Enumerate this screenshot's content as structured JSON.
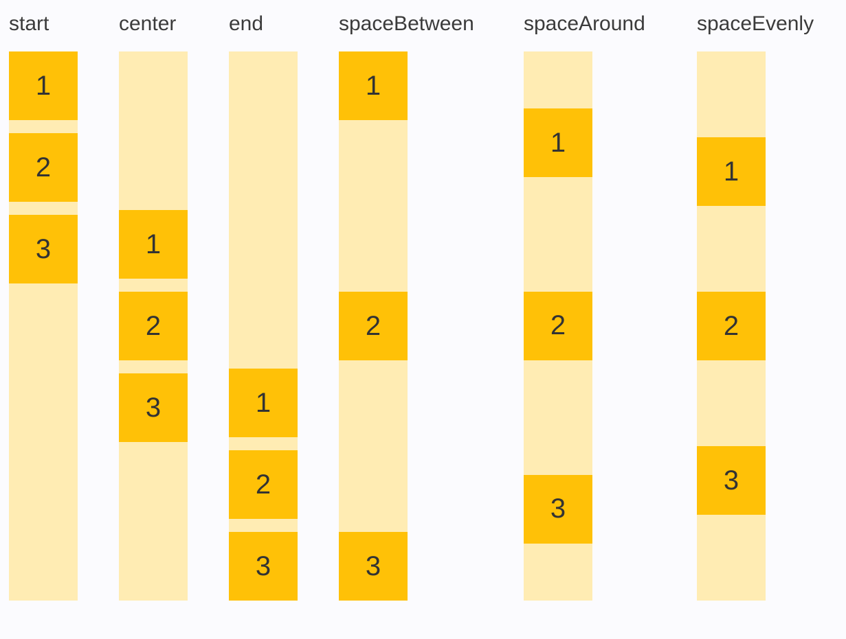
{
  "page": {
    "background_color": "#FBFBFE",
    "description": "main-axis alignment demo with six labeled flex columns"
  },
  "colors": {
    "box_fill": "#FFC107",
    "track_fill": "#FFECB3",
    "label_text": "#3B3B3B",
    "number_text": "#333333"
  },
  "columns": [
    {
      "label": "start",
      "justify": "start",
      "items": [
        "1",
        "2",
        "3"
      ]
    },
    {
      "label": "center",
      "justify": "center",
      "items": [
        "1",
        "2",
        "3"
      ]
    },
    {
      "label": "end",
      "justify": "end",
      "items": [
        "1",
        "2",
        "3"
      ]
    },
    {
      "label": "spaceBetween",
      "justify": "spaceBetween",
      "items": [
        "1",
        "2",
        "3"
      ]
    },
    {
      "label": "spaceAround",
      "justify": "spaceAround",
      "items": [
        "1",
        "2",
        "3"
      ]
    },
    {
      "label": "spaceEvenly",
      "justify": "spaceEvenly",
      "items": [
        "1",
        "2",
        "3"
      ]
    }
  ]
}
